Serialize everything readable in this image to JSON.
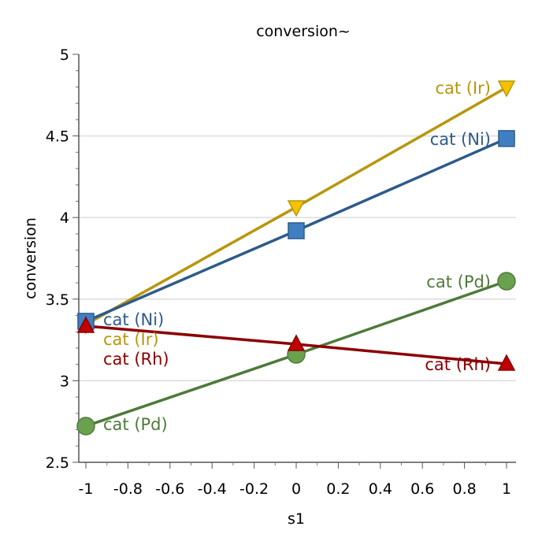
{
  "chart_data": {
    "type": "line",
    "title": "conversion~",
    "xlabel": "s1",
    "ylabel": "conversion",
    "xlim": [
      -1.03,
      1.03
    ],
    "ylim": [
      2.5,
      5
    ],
    "xticks": [
      -1,
      -0.8,
      -0.6,
      -0.4,
      -0.2,
      0,
      0.2,
      0.4,
      0.6,
      0.8,
      1
    ],
    "xtick_labels": [
      "-1",
      "-0.8",
      "-0.6",
      "-0.4",
      "-0.2",
      "0",
      "0.2",
      "0.4",
      "0.6",
      "0.8",
      "1"
    ],
    "yticks": [
      2.5,
      3,
      3.5,
      4,
      4.5,
      5
    ],
    "ytick_labels": [
      "2.5",
      "3",
      "3.5",
      "4",
      "4.5",
      "5"
    ],
    "grid": "horizontal",
    "x": [
      -1,
      0,
      1
    ],
    "series": [
      {
        "name": "cat (Ir)",
        "values": [
          3.345,
          4.064,
          4.797
        ],
        "line": "#b8960c",
        "fill": "#f5c200",
        "marker": "triangle-down"
      },
      {
        "name": "cat (Ni)",
        "values": [
          3.364,
          3.919,
          4.484
        ],
        "line": "#2d5b8a",
        "fill": "#3f7fc1",
        "marker": "square"
      },
      {
        "name": "cat (Pd)",
        "values": [
          2.722,
          3.161,
          3.61
        ],
        "line": "#4e7a3a",
        "fill": "#6aa14f",
        "marker": "circle"
      },
      {
        "name": "cat (Rh)",
        "values": [
          3.335,
          3.224,
          3.103
        ],
        "line": "#8b0000",
        "fill": "#c00000",
        "marker": "triangle-up"
      }
    ]
  }
}
